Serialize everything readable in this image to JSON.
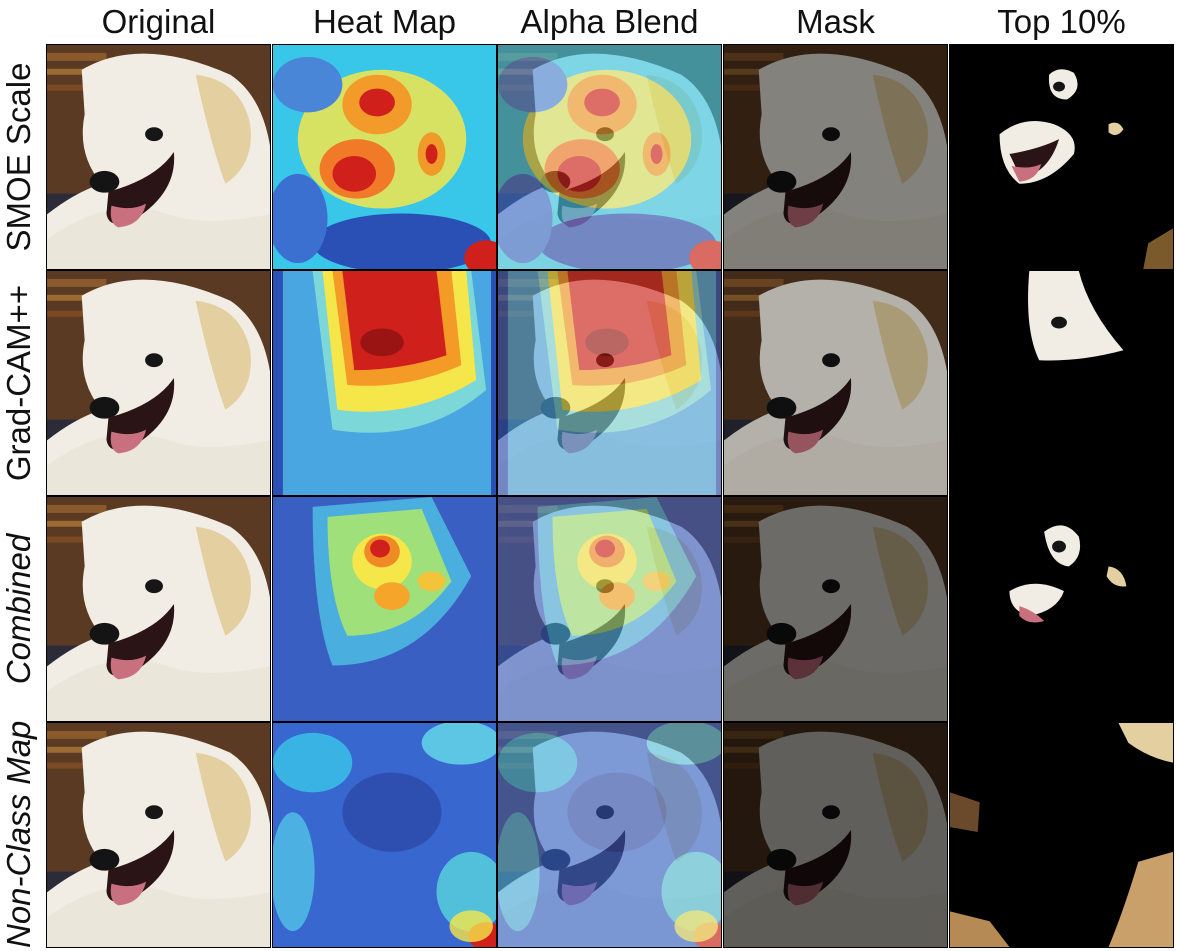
{
  "columns": [
    "Original",
    "Heat Map",
    "Alpha Blend",
    "Mask",
    "Top 10%"
  ],
  "rows": [
    {
      "label": "SMOE Scale",
      "italic": false,
      "heat": "smoe"
    },
    {
      "label": "Grad-CAM++",
      "italic": false,
      "heat": "gradcam"
    },
    {
      "label": "Combined",
      "italic": true,
      "heat": "combined"
    },
    {
      "label": "Non-Class Map",
      "italic": true,
      "heat": "nonclass"
    }
  ],
  "colors": {
    "background": "#ffffff",
    "fur": "#f1ede4",
    "carpet": "#5a3a22",
    "jet_blue": "#2a4fb5",
    "jet_cyan": "#38c7e8",
    "jet_yellow": "#f5e64a",
    "jet_red": "#d0201c"
  }
}
